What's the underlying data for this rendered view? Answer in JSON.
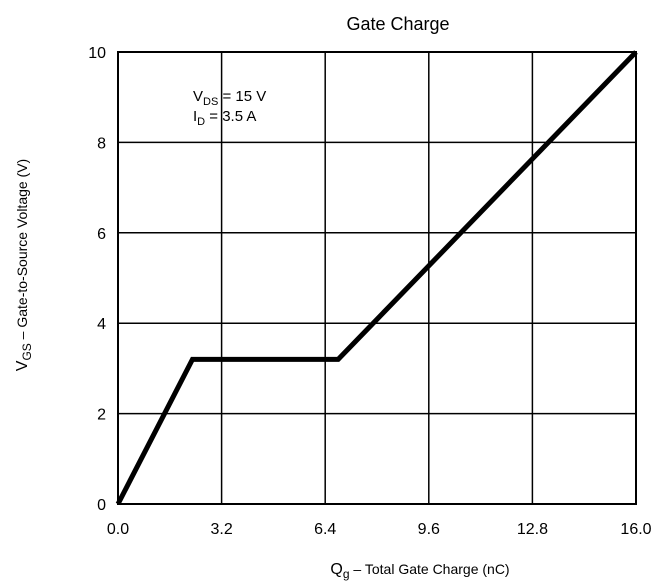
{
  "chart_data": {
    "type": "line",
    "title": "Gate Charge",
    "xlabel": {
      "main": "Q",
      "sub": "g",
      "rest": " –  Total Gate Charge (nC)"
    },
    "ylabel": {
      "main": "V",
      "sub": "GS",
      "rest": " –  Gate-to-Source Voltage (V)"
    },
    "xlim": [
      0,
      16
    ],
    "ylim": [
      0,
      10
    ],
    "xticks": [
      0,
      3.2,
      6.4,
      9.6,
      12.8,
      16
    ],
    "xtick_labels": [
      "0.0",
      "3.2",
      "6.4",
      "9.6",
      "12.8",
      "16.0"
    ],
    "yticks": [
      0,
      2,
      4,
      6,
      8,
      10
    ],
    "ytick_labels": [
      "0",
      "2",
      "4",
      "6",
      "8",
      "10"
    ],
    "grid": true,
    "annotations": [
      {
        "main": "V",
        "sub": "DS",
        "rest": " = 15 V"
      },
      {
        "main": "I",
        "sub": "D",
        "rest": " = 3.5 A"
      }
    ],
    "series": [
      {
        "x": [
          0,
          2.3,
          6.8,
          16
        ],
        "y": [
          0,
          3.2,
          3.2,
          10
        ]
      }
    ],
    "line_color": "#000000",
    "grid_color": "#000000"
  }
}
